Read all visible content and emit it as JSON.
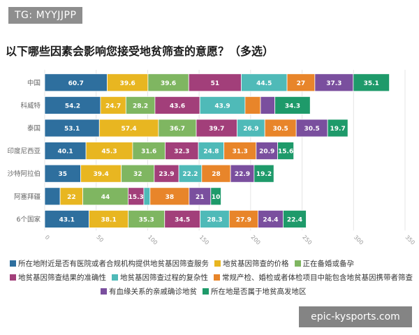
{
  "tag": "TG: MYYJJPP",
  "watermark": "epic-kysports.com",
  "chart_data": {
    "type": "bar",
    "orientation": "horizontal",
    "stacked": true,
    "title": "以下哪些因素会影响您接受地贫筛查的意愿？（多选）",
    "xlim": [
      0,
      350
    ],
    "xticks": [
      0,
      50,
      100,
      150,
      200,
      250,
      300,
      350
    ],
    "grid": true,
    "legend": "bottom",
    "categories": [
      "中国",
      "科威特",
      "泰国",
      "印度尼西亚",
      "沙特阿拉伯",
      "阿塞拜疆",
      "6个国家"
    ],
    "series": [
      {
        "name": "所在地附近是否有医院或者合规机构提供地贫基因筛查服务",
        "color": "#2e6f9e",
        "values": [
          60.7,
          54.2,
          53.1,
          40.1,
          35,
          15,
          43.1
        ],
        "labels": [
          "60.7",
          "54.2",
          "53.1",
          "40.1",
          "35",
          "",
          "43.1"
        ]
      },
      {
        "name": "地贫基因筛查的价格",
        "color": "#e8b621",
        "values": [
          39.6,
          24.7,
          57.4,
          45.3,
          39.4,
          22,
          38.1
        ],
        "labels": [
          "39.6",
          "24.7",
          "57.4",
          "45.3",
          "39.4",
          "22",
          "38.1"
        ]
      },
      {
        "name": "正在备婚或备孕",
        "color": "#7fb661",
        "values": [
          39.6,
          28.2,
          36.7,
          31.6,
          32,
          44,
          35.3
        ],
        "labels": [
          "39.6",
          "28.2",
          "36.7",
          "31.6",
          "32",
          "44",
          "35.3"
        ]
      },
      {
        "name": "地贫基因筛查结果的准确性",
        "color": "#a23f7a",
        "values": [
          51,
          43.6,
          39.7,
          32.3,
          23.9,
          15.3,
          34.5
        ],
        "labels": [
          "51",
          "43.6",
          "39.7",
          "32.3",
          "23.9",
          "15.3",
          "34.5"
        ]
      },
      {
        "name": "地贫基因筛查过程的复杂性",
        "color": "#4fbab8",
        "values": [
          44.5,
          43.9,
          26.9,
          24.8,
          22.2,
          6,
          28.3
        ],
        "labels": [
          "44.5",
          "43.9",
          "26.9",
          "24.8",
          "22.2",
          "",
          "28.3"
        ]
      },
      {
        "name": "常规产检、婚检或者体检项目中能包含地贫基因携带者筛查",
        "color": "#e8852a",
        "values": [
          27,
          15,
          30.5,
          31.3,
          28,
          38,
          27.9
        ],
        "labels": [
          "27",
          "",
          "30.5",
          "31.3",
          "28",
          "38",
          "27.9"
        ]
      },
      {
        "name": "有血缘关系的亲戚确诊地贫",
        "color": "#7a4f9e",
        "values": [
          37.3,
          14,
          30.5,
          20.9,
          22.9,
          21,
          24.4
        ],
        "labels": [
          "37.3",
          "",
          "30.5",
          "20.9",
          "22.9",
          "21",
          "24.4"
        ]
      },
      {
        "name": "所在地是否属于地贫高发地区",
        "color": "#1e9a6a",
        "values": [
          35.1,
          34.3,
          19.7,
          15.6,
          19.2,
          10,
          22.4
        ],
        "labels": [
          "35.1",
          "34.3",
          "19.7",
          "15.6",
          "19.2",
          "10",
          "22.4"
        ]
      }
    ]
  }
}
